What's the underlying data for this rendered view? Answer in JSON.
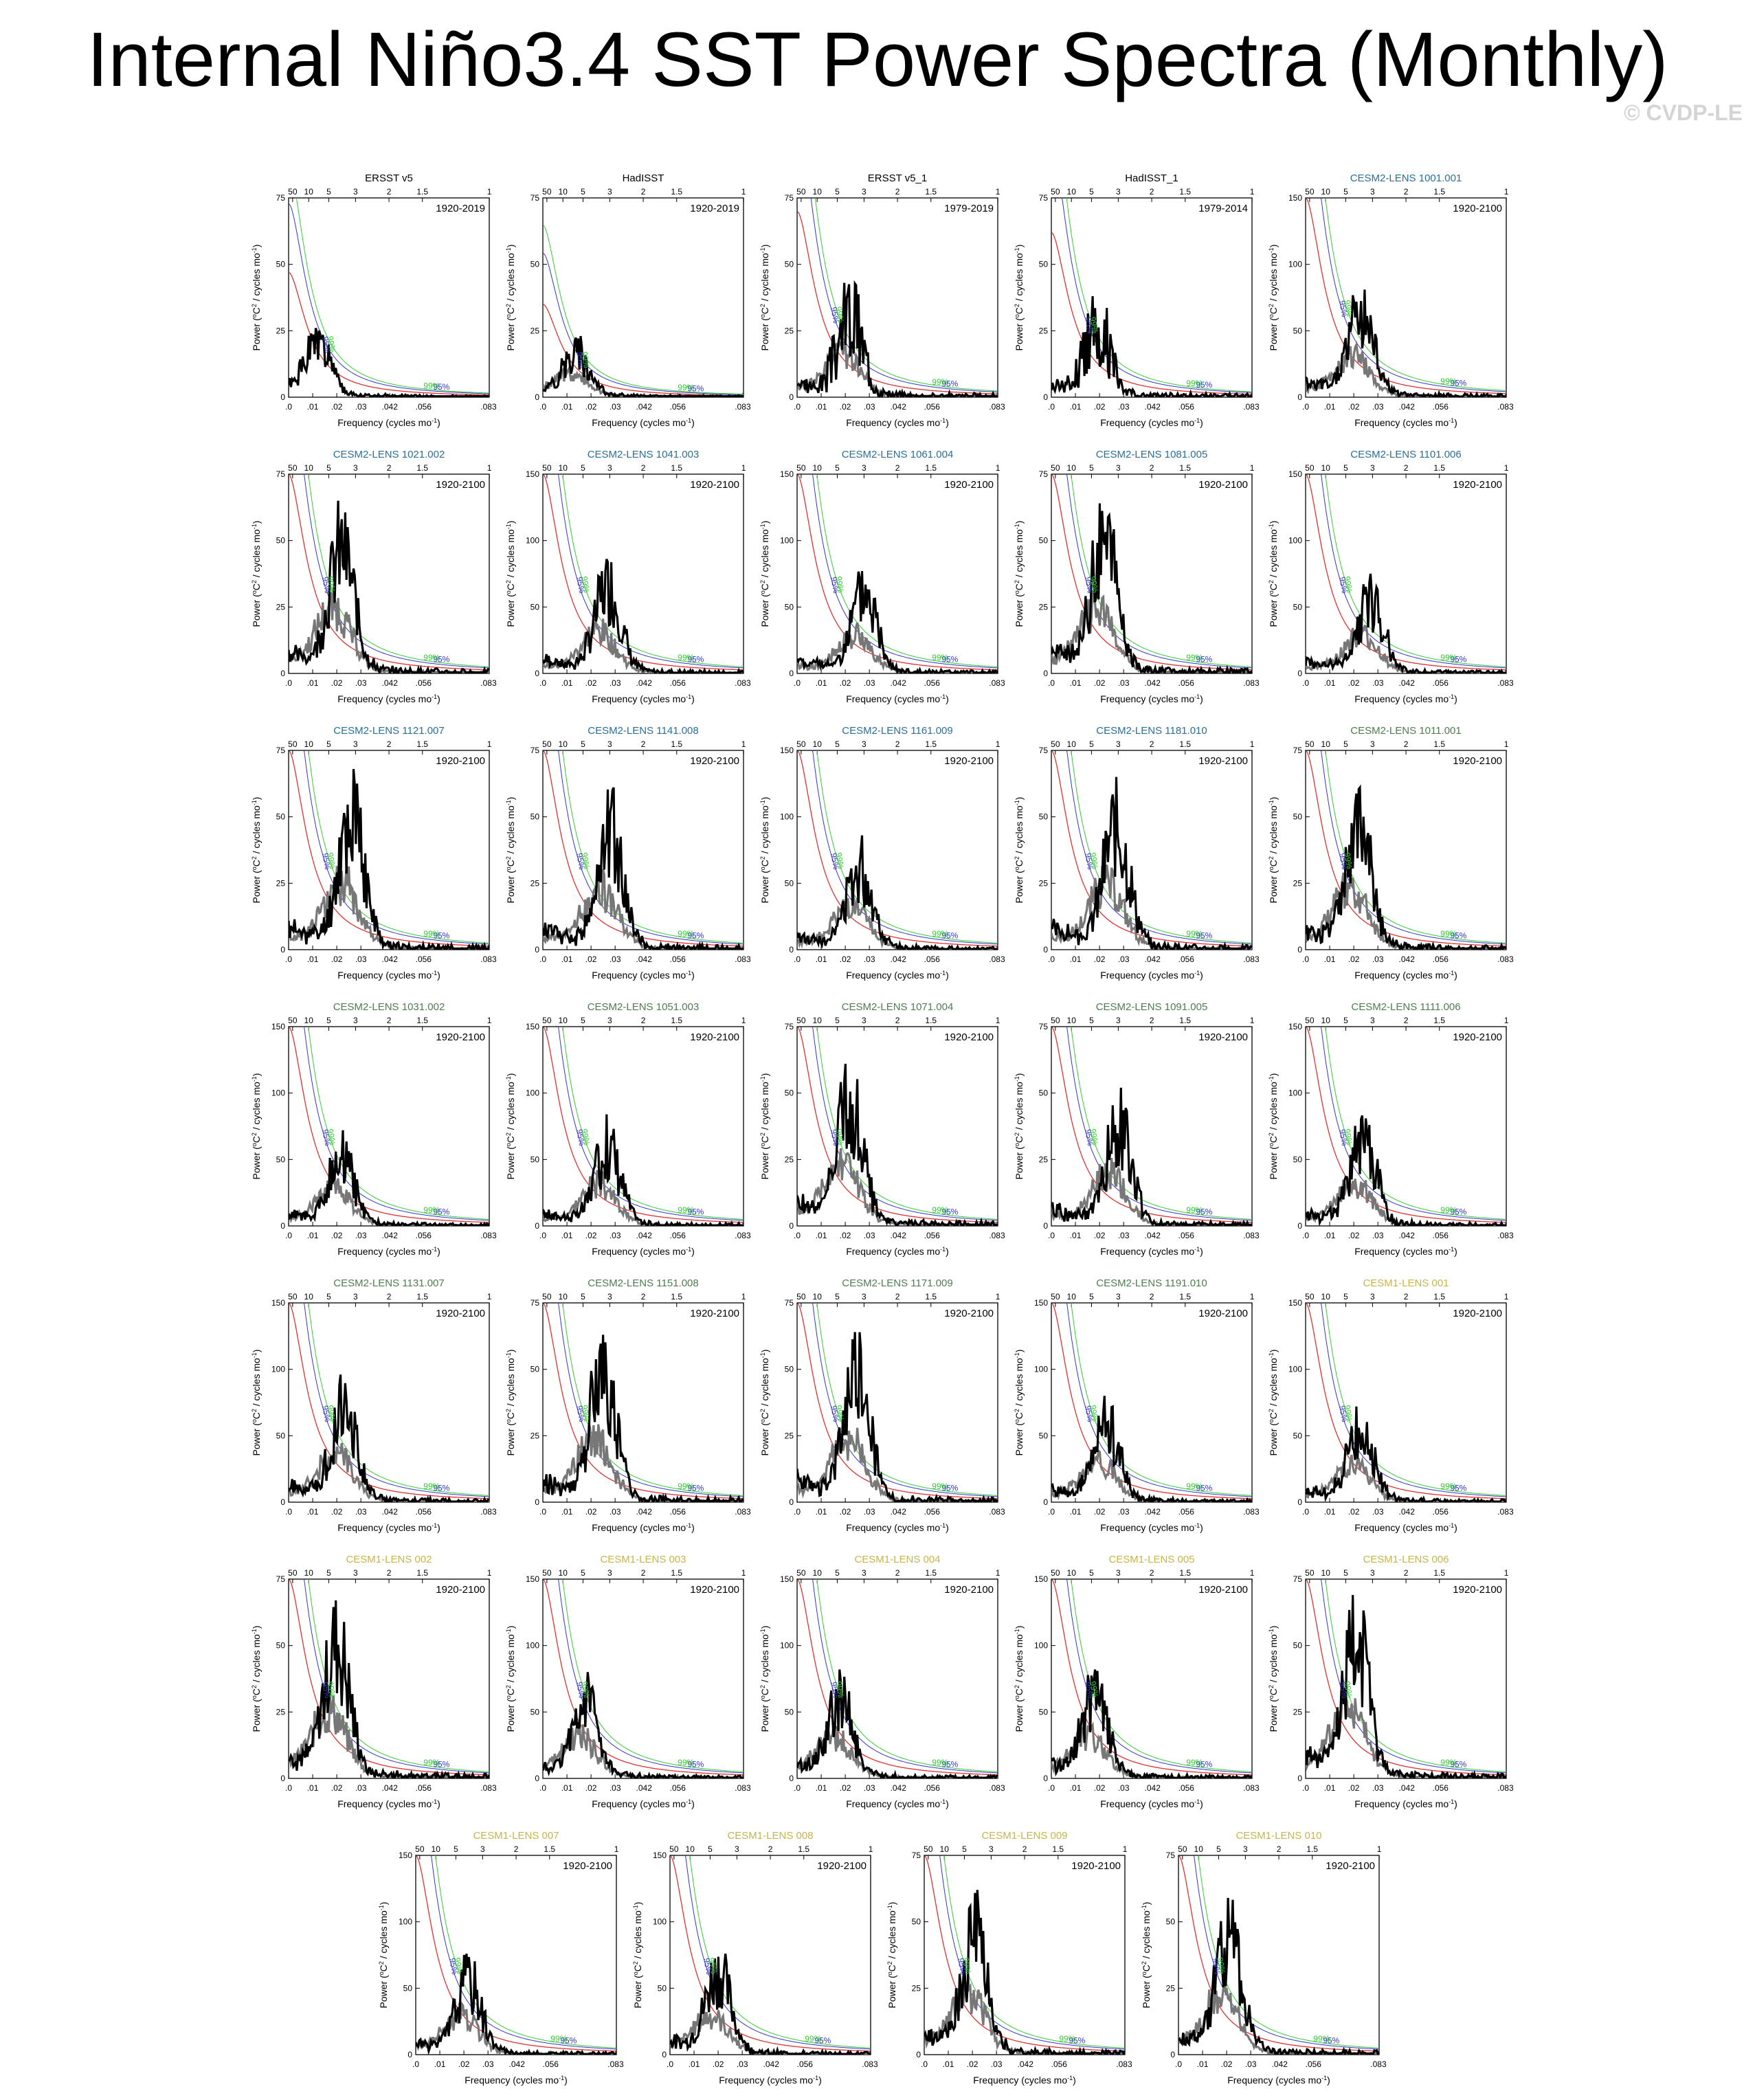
{
  "title": "Internal Niño3.4 SST Power Spectra (Monthly)",
  "copyright": "© CVDP-LE",
  "colors": {
    "obs_title": "#000000",
    "cesm2_1001": "#2a6f97",
    "cesm2_smbb": "#4f7c4f",
    "cesm1": "#c8b44a",
    "red_noise": "#e03030",
    "sig95": "#3333cc",
    "sig99": "#33cc33",
    "spectrum": "#000000",
    "sub_spectrum": "#777777"
  },
  "common": {
    "xlabel": "Frequency (cycles mo",
    "xlabel_sup": "-1",
    "xlabel_end": ")",
    "ylabel_pre": "Power (",
    "ylabel_sup": "o",
    "ylabel_mid": "C",
    "ylabel_sup2": "2",
    "ylabel_post": " / cycles mo",
    "ylabel_sup3": "-1",
    "ylabel_end": ")",
    "x_tick_labels": [
      ".0",
      ".01",
      ".02",
      ".03",
      ".042",
      ".056",
      ".083"
    ],
    "x_tick_values": [
      0,
      0.01,
      0.02,
      0.03,
      0.042,
      0.056,
      0.083
    ],
    "period_tick_labels": [
      "50",
      "10",
      "5",
      "3",
      "2",
      "1.5",
      "1"
    ],
    "period_tick_values": [
      0.00167,
      0.00833,
      0.01667,
      0.02778,
      0.04167,
      0.05556,
      0.08333
    ],
    "sig95_label": "95%",
    "sig99_label": "99%",
    "xlim": [
      0,
      0.0833
    ]
  },
  "chart_data": [
    {
      "type": "line",
      "title": "ERSST v5",
      "title_color": "obs_title",
      "period": "1920-2019",
      "ylim": [
        0,
        75
      ],
      "yticks": [
        0,
        25,
        50,
        75
      ],
      "peak_f": 0.012,
      "peak_v": 26,
      "red0": 47,
      "has_sub": false,
      "noise": 0.35,
      "seed": 1
    },
    {
      "type": "line",
      "title": "HadISST",
      "title_color": "obs_title",
      "period": "1920-2019",
      "ylim": [
        0,
        75
      ],
      "yticks": [
        0,
        25,
        50,
        75
      ],
      "peak_f": 0.014,
      "peak_v": 23,
      "red0": 35,
      "has_sub": true,
      "noise": 0.35,
      "seed": 2
    },
    {
      "type": "line",
      "title": "ERSST v5_1",
      "title_color": "obs_title",
      "period": "1979-2019",
      "ylim": [
        0,
        75
      ],
      "yticks": [
        0,
        25,
        50,
        75
      ],
      "peak_f": 0.022,
      "peak_v": 43,
      "red0": 70,
      "has_sub": true,
      "noise": 0.7,
      "seed": 3
    },
    {
      "type": "line",
      "title": "HadISST_1",
      "title_color": "obs_title",
      "period": "1979-2014",
      "ylim": [
        0,
        75
      ],
      "yticks": [
        0,
        25,
        50,
        75
      ],
      "peak_f": 0.019,
      "peak_v": 38,
      "red0": 62,
      "has_sub": false,
      "noise": 0.7,
      "seed": 4
    },
    {
      "type": "line",
      "title": "CESM2-LENS 1001.001",
      "title_color": "cesm2_1001",
      "period": "1920-2100",
      "ylim": [
        0,
        150
      ],
      "yticks": [
        0,
        50,
        100,
        150
      ],
      "peak_f": 0.023,
      "peak_v": 81,
      "red0": 150,
      "has_sub": true,
      "noise": 0.3,
      "seed": 5
    },
    {
      "type": "line",
      "title": "CESM2-LENS 1021.002",
      "title_color": "cesm2_1001",
      "period": "1920-2100",
      "ylim": [
        0,
        75
      ],
      "yticks": [
        0,
        25,
        50,
        75
      ],
      "peak_f": 0.022,
      "peak_v": 65,
      "red0": 75,
      "has_sub": true,
      "noise": 0.3,
      "seed": 6
    },
    {
      "type": "line",
      "title": "CESM2-LENS 1041.003",
      "title_color": "cesm2_1001",
      "period": "1920-2100",
      "ylim": [
        0,
        150
      ],
      "yticks": [
        0,
        50,
        100,
        150
      ],
      "peak_f": 0.027,
      "peak_v": 86,
      "red0": 150,
      "has_sub": true,
      "noise": 0.3,
      "seed": 7
    },
    {
      "type": "line",
      "title": "CESM2-LENS 1061.004",
      "title_color": "cesm2_1001",
      "period": "1920-2100",
      "ylim": [
        0,
        150
      ],
      "yticks": [
        0,
        50,
        100,
        150
      ],
      "peak_f": 0.028,
      "peak_v": 77,
      "red0": 150,
      "has_sub": true,
      "noise": 0.3,
      "seed": 8
    },
    {
      "type": "line",
      "title": "CESM2-LENS 1081.005",
      "title_color": "cesm2_1001",
      "period": "1920-2100",
      "ylim": [
        0,
        75
      ],
      "yticks": [
        0,
        25,
        50,
        75
      ],
      "peak_f": 0.022,
      "peak_v": 64,
      "red0": 75,
      "has_sub": true,
      "noise": 0.3,
      "seed": 9
    },
    {
      "type": "line",
      "title": "CESM2-LENS 1101.006",
      "title_color": "cesm2_1001",
      "period": "1920-2100",
      "ylim": [
        0,
        150
      ],
      "yticks": [
        0,
        50,
        100,
        150
      ],
      "peak_f": 0.027,
      "peak_v": 75,
      "red0": 150,
      "has_sub": true,
      "noise": 0.3,
      "seed": 10
    },
    {
      "type": "line",
      "title": "CESM2-LENS 1121.007",
      "title_color": "cesm2_1001",
      "period": "1920-2100",
      "ylim": [
        0,
        75
      ],
      "yticks": [
        0,
        25,
        50,
        75
      ],
      "peak_f": 0.026,
      "peak_v": 68,
      "red0": 75,
      "has_sub": true,
      "noise": 0.3,
      "seed": 11
    },
    {
      "type": "line",
      "title": "CESM2-LENS 1141.008",
      "title_color": "cesm2_1001",
      "period": "1920-2100",
      "ylim": [
        0,
        75
      ],
      "yticks": [
        0,
        25,
        50,
        75
      ],
      "peak_f": 0.028,
      "peak_v": 61,
      "red0": 75,
      "has_sub": true,
      "noise": 0.3,
      "seed": 12
    },
    {
      "type": "line",
      "title": "CESM2-LENS 1161.009",
      "title_color": "cesm2_1001",
      "period": "1920-2100",
      "ylim": [
        0,
        150
      ],
      "yticks": [
        0,
        50,
        100,
        150
      ],
      "peak_f": 0.026,
      "peak_v": 86,
      "red0": 150,
      "has_sub": true,
      "noise": 0.3,
      "seed": 13
    },
    {
      "type": "line",
      "title": "CESM2-LENS 1181.010",
      "title_color": "cesm2_1001",
      "period": "1920-2100",
      "ylim": [
        0,
        75
      ],
      "yticks": [
        0,
        25,
        50,
        75
      ],
      "peak_f": 0.027,
      "peak_v": 65,
      "red0": 75,
      "has_sub": true,
      "noise": 0.3,
      "seed": 14
    },
    {
      "type": "line",
      "title": "CESM2-LENS 1011.001",
      "title_color": "cesm2_smbb",
      "period": "1920-2100",
      "ylim": [
        0,
        75
      ],
      "yticks": [
        0,
        25,
        50,
        75
      ],
      "peak_f": 0.022,
      "peak_v": 61,
      "red0": 75,
      "has_sub": true,
      "noise": 0.3,
      "seed": 15
    },
    {
      "type": "line",
      "title": "CESM2-LENS 1031.002",
      "title_color": "cesm2_smbb",
      "period": "1920-2100",
      "ylim": [
        0,
        150
      ],
      "yticks": [
        0,
        50,
        100,
        150
      ],
      "peak_f": 0.022,
      "peak_v": 72,
      "red0": 150,
      "has_sub": true,
      "noise": 0.3,
      "seed": 16
    },
    {
      "type": "line",
      "title": "CESM2-LENS 1051.003",
      "title_color": "cesm2_smbb",
      "period": "1920-2100",
      "ylim": [
        0,
        150
      ],
      "yticks": [
        0,
        50,
        100,
        150
      ],
      "peak_f": 0.027,
      "peak_v": 84,
      "red0": 150,
      "has_sub": true,
      "noise": 0.3,
      "seed": 17
    },
    {
      "type": "line",
      "title": "CESM2-LENS 1071.004",
      "title_color": "cesm2_smbb",
      "period": "1920-2100",
      "ylim": [
        0,
        75
      ],
      "yticks": [
        0,
        25,
        50,
        75
      ],
      "peak_f": 0.022,
      "peak_v": 61,
      "red0": 75,
      "has_sub": true,
      "noise": 0.3,
      "seed": 18
    },
    {
      "type": "line",
      "title": "CESM2-LENS 1091.005",
      "title_color": "cesm2_smbb",
      "period": "1920-2100",
      "ylim": [
        0,
        75
      ],
      "yticks": [
        0,
        25,
        50,
        75
      ],
      "peak_f": 0.028,
      "peak_v": 52,
      "red0": 75,
      "has_sub": true,
      "noise": 0.3,
      "seed": 19
    },
    {
      "type": "line",
      "title": "CESM2-LENS 1111.006",
      "title_color": "cesm2_smbb",
      "period": "1920-2100",
      "ylim": [
        0,
        150
      ],
      "yticks": [
        0,
        50,
        100,
        150
      ],
      "peak_f": 0.024,
      "peak_v": 83,
      "red0": 150,
      "has_sub": true,
      "noise": 0.3,
      "seed": 20
    },
    {
      "type": "line",
      "title": "CESM2-LENS 1131.007",
      "title_color": "cesm2_smbb",
      "period": "1920-2100",
      "ylim": [
        0,
        150
      ],
      "yticks": [
        0,
        50,
        100,
        150
      ],
      "peak_f": 0.023,
      "peak_v": 96,
      "red0": 150,
      "has_sub": true,
      "noise": 0.3,
      "seed": 21
    },
    {
      "type": "line",
      "title": "CESM2-LENS 1151.008",
      "title_color": "cesm2_smbb",
      "period": "1920-2100",
      "ylim": [
        0,
        75
      ],
      "yticks": [
        0,
        25,
        50,
        75
      ],
      "peak_f": 0.025,
      "peak_v": 63,
      "red0": 75,
      "has_sub": true,
      "noise": 0.3,
      "seed": 22
    },
    {
      "type": "line",
      "title": "CESM2-LENS 1171.009",
      "title_color": "cesm2_smbb",
      "period": "1920-2100",
      "ylim": [
        0,
        75
      ],
      "yticks": [
        0,
        25,
        50,
        75
      ],
      "peak_f": 0.025,
      "peak_v": 64,
      "red0": 75,
      "has_sub": true,
      "noise": 0.3,
      "seed": 23
    },
    {
      "type": "line",
      "title": "CESM2-LENS 1191.010",
      "title_color": "cesm2_smbb",
      "period": "1920-2100",
      "ylim": [
        0,
        150
      ],
      "yticks": [
        0,
        50,
        100,
        150
      ],
      "peak_f": 0.023,
      "peak_v": 80,
      "red0": 150,
      "has_sub": true,
      "noise": 0.3,
      "seed": 24
    },
    {
      "type": "line",
      "title": "CESM1-LENS 001",
      "title_color": "cesm1",
      "period": "1920-2100",
      "ylim": [
        0,
        150
      ],
      "yticks": [
        0,
        50,
        100,
        150
      ],
      "peak_f": 0.023,
      "peak_v": 72,
      "red0": 150,
      "has_sub": true,
      "noise": 0.3,
      "seed": 25
    },
    {
      "type": "line",
      "title": "CESM1-LENS 002",
      "title_color": "cesm1",
      "period": "1920-2100",
      "ylim": [
        0,
        75
      ],
      "yticks": [
        0,
        25,
        50,
        75
      ],
      "peak_f": 0.02,
      "peak_v": 67,
      "red0": 75,
      "has_sub": true,
      "noise": 0.3,
      "seed": 26
    },
    {
      "type": "line",
      "title": "CESM1-LENS 003",
      "title_color": "cesm1",
      "period": "1920-2100",
      "ylim": [
        0,
        150
      ],
      "yticks": [
        0,
        50,
        100,
        150
      ],
      "peak_f": 0.018,
      "peak_v": 80,
      "red0": 150,
      "has_sub": true,
      "noise": 0.3,
      "seed": 27
    },
    {
      "type": "line",
      "title": "CESM1-LENS 004",
      "title_color": "cesm1",
      "period": "1920-2100",
      "ylim": [
        0,
        150
      ],
      "yticks": [
        0,
        50,
        100,
        150
      ],
      "peak_f": 0.018,
      "peak_v": 82,
      "red0": 150,
      "has_sub": true,
      "noise": 0.3,
      "seed": 28
    },
    {
      "type": "line",
      "title": "CESM1-LENS 005",
      "title_color": "cesm1",
      "period": "1920-2100",
      "ylim": [
        0,
        150
      ],
      "yticks": [
        0,
        50,
        100,
        150
      ],
      "peak_f": 0.018,
      "peak_v": 82,
      "red0": 150,
      "has_sub": true,
      "noise": 0.3,
      "seed": 29
    },
    {
      "type": "line",
      "title": "CESM1-LENS 006",
      "title_color": "cesm1",
      "period": "1920-2100",
      "ylim": [
        0,
        75
      ],
      "yticks": [
        0,
        25,
        50,
        75
      ],
      "peak_f": 0.021,
      "peak_v": 69,
      "red0": 75,
      "has_sub": true,
      "noise": 0.3,
      "seed": 30
    },
    {
      "type": "line",
      "title": "CESM1-LENS 007",
      "title_color": "cesm1",
      "period": "1920-2100",
      "ylim": [
        0,
        150
      ],
      "yticks": [
        0,
        50,
        100,
        150
      ],
      "peak_f": 0.022,
      "peak_v": 76,
      "red0": 150,
      "has_sub": true,
      "noise": 0.3,
      "seed": 31
    },
    {
      "type": "line",
      "title": "CESM1-LENS 008",
      "title_color": "cesm1",
      "period": "1920-2100",
      "ylim": [
        0,
        150
      ],
      "yticks": [
        0,
        50,
        100,
        150
      ],
      "peak_f": 0.02,
      "peak_v": 76,
      "red0": 150,
      "has_sub": true,
      "noise": 0.3,
      "seed": 32
    },
    {
      "type": "line",
      "title": "CESM1-LENS 009",
      "title_color": "cesm1",
      "period": "1920-2100",
      "ylim": [
        0,
        75
      ],
      "yticks": [
        0,
        25,
        50,
        75
      ],
      "peak_f": 0.021,
      "peak_v": 62,
      "red0": 75,
      "has_sub": true,
      "noise": 0.3,
      "seed": 33
    },
    {
      "type": "line",
      "title": "CESM1-LENS 010",
      "title_color": "cesm1",
      "period": "1920-2100",
      "ylim": [
        0,
        75
      ],
      "yticks": [
        0,
        25,
        50,
        75
      ],
      "peak_f": 0.021,
      "peak_v": 59,
      "red0": 75,
      "has_sub": true,
      "noise": 0.3,
      "seed": 34
    }
  ]
}
